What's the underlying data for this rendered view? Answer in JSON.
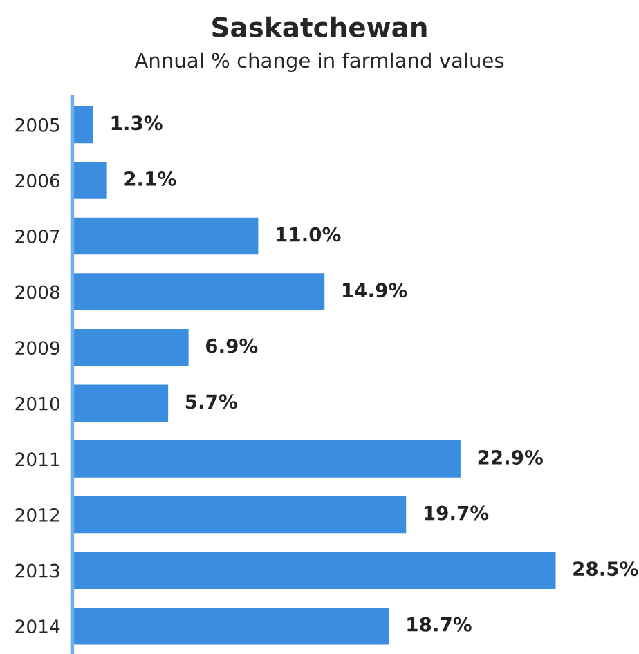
{
  "chart_data": {
    "type": "bar",
    "orientation": "horizontal",
    "title": "Saskatchewan",
    "subtitle": "Annual % change in farmland values",
    "categories": [
      "2005",
      "2006",
      "2007",
      "2008",
      "2009",
      "2010",
      "2011",
      "2012",
      "2013",
      "2014"
    ],
    "values": [
      1.3,
      2.1,
      11.0,
      14.9,
      6.9,
      5.7,
      22.9,
      19.7,
      28.5,
      18.7
    ],
    "value_labels": [
      "1.3%",
      "2.1%",
      "11.0%",
      "14.9%",
      "6.9%",
      "5.7%",
      "22.9%",
      "19.7%",
      "28.5%",
      "18.7%"
    ],
    "color": "#3b8de0"
  }
}
